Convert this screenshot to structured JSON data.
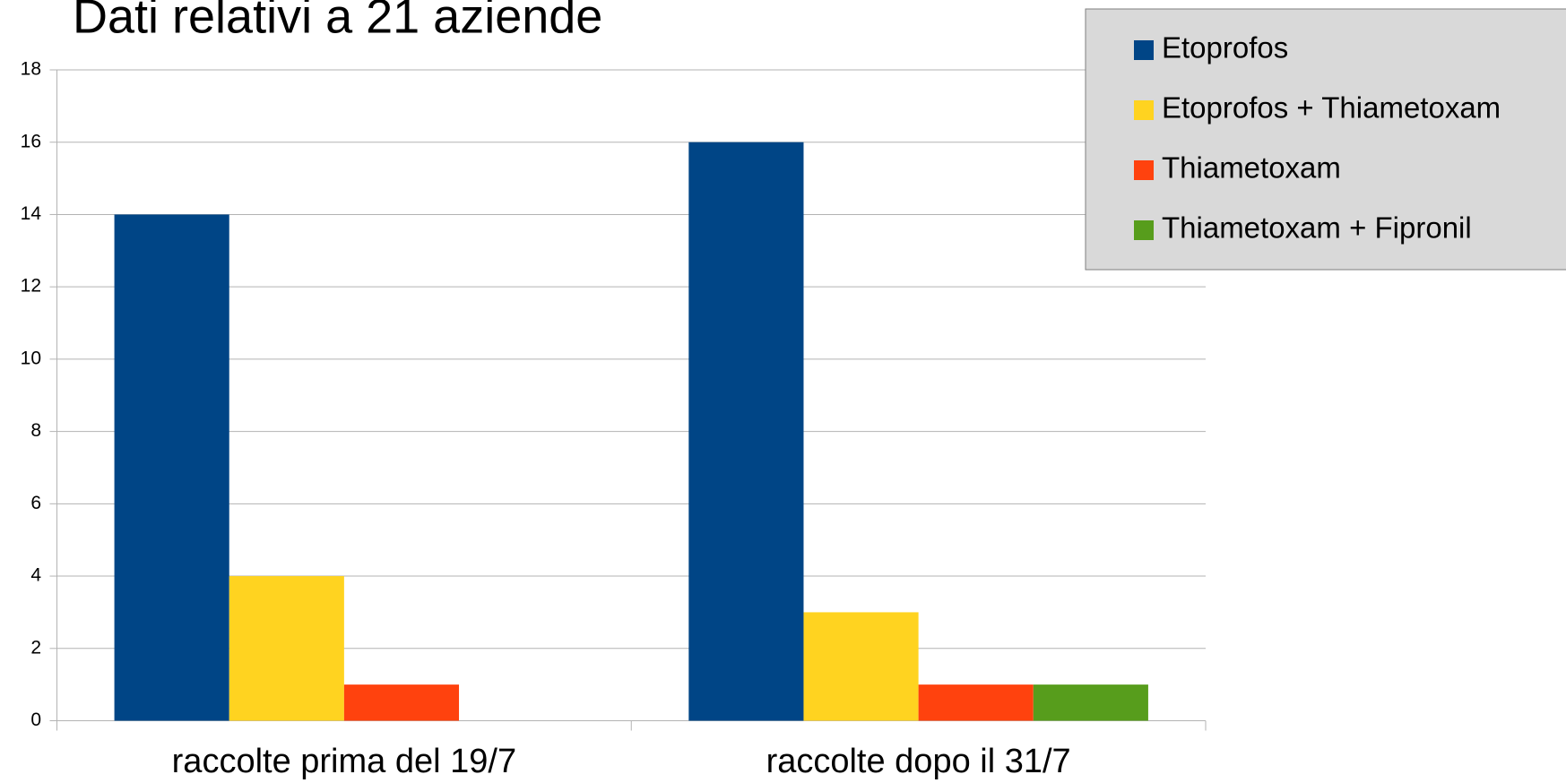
{
  "chart_data": {
    "type": "bar",
    "title": "Dati relativi a 21 aziende",
    "categories": [
      "raccolte prima del 19/7",
      "raccolte dopo il 31/7"
    ],
    "series": [
      {
        "name": "Etoprofos",
        "color": "#004586",
        "values": [
          14,
          16
        ]
      },
      {
        "name": "Etoprofos + Thiametoxam",
        "color": "#ffd320",
        "values": [
          4,
          3
        ]
      },
      {
        "name": "Thiametoxam",
        "color": "#ff420e",
        "values": [
          1,
          1
        ]
      },
      {
        "name": "Thiametoxam + Fipronil",
        "color": "#579d1c",
        "values": [
          0,
          1
        ]
      }
    ],
    "ylim": [
      0,
      18
    ],
    "yticks": [
      0,
      2,
      4,
      6,
      8,
      10,
      12,
      14,
      16,
      18
    ],
    "grid": true,
    "legend": "top-right"
  }
}
